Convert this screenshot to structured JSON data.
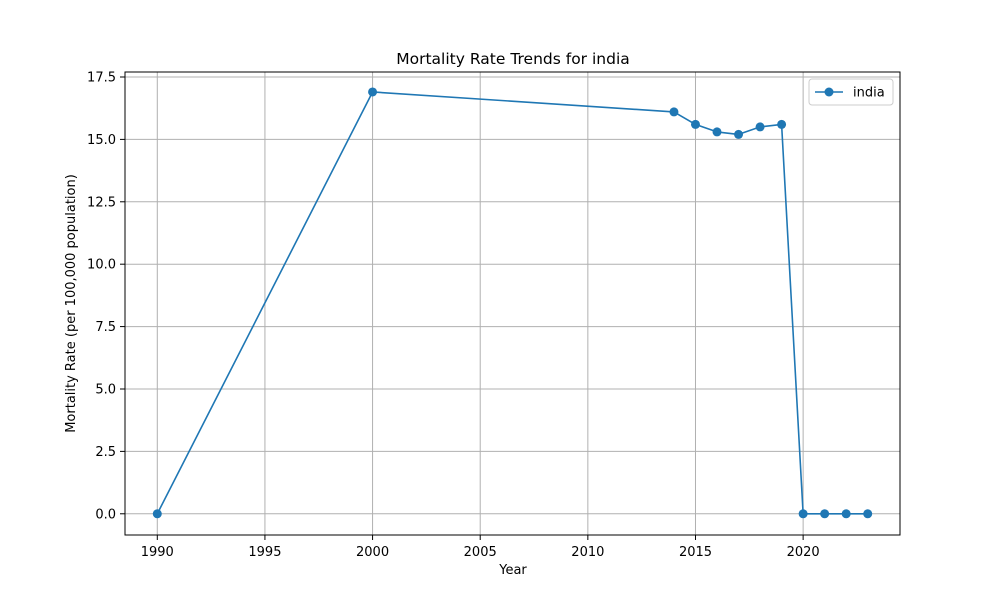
{
  "chart_data": {
    "type": "line",
    "title": "Mortality Rate Trends for india",
    "xlabel": "Year",
    "ylabel": "Mortality Rate (per 100,000 population)",
    "xlim": [
      1988.5,
      2024.5
    ],
    "ylim": [
      -0.85,
      17.7
    ],
    "xticks": [
      1990,
      1995,
      2000,
      2005,
      2010,
      2015,
      2020
    ],
    "yticks": [
      0.0,
      2.5,
      5.0,
      7.5,
      10.0,
      12.5,
      15.0,
      17.5
    ],
    "ytick_labels": [
      "0.0",
      "2.5",
      "5.0",
      "7.5",
      "10.0",
      "12.5",
      "15.0",
      "17.5"
    ],
    "grid": true,
    "legend_position": "top-right",
    "series": [
      {
        "name": "india",
        "color": "#1f77b4",
        "marker": "circle",
        "x": [
          1990,
          2000,
          2014,
          2015,
          2016,
          2017,
          2018,
          2019,
          2020,
          2021,
          2022,
          2023
        ],
        "y": [
          0.0,
          16.9,
          16.1,
          15.6,
          15.3,
          15.2,
          15.5,
          15.6,
          0.0,
          0.0,
          0.0,
          0.0
        ]
      }
    ]
  }
}
